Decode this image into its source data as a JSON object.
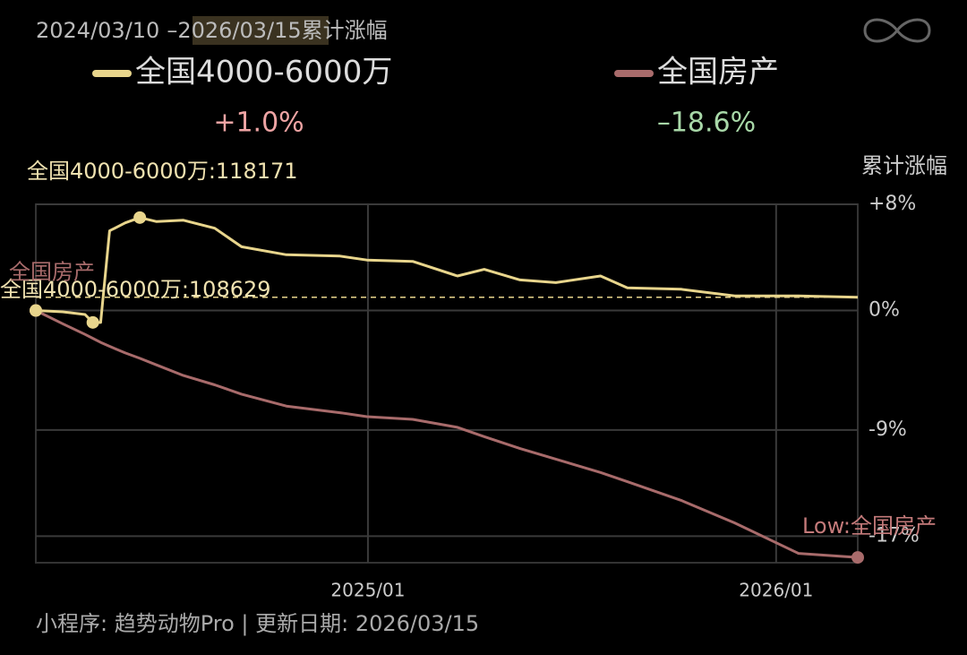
{
  "header": {
    "start": "2024/03/10",
    "separator": "–",
    "end": "2026/03/15",
    "title": "累计涨幅"
  },
  "chart_data": {
    "type": "line",
    "y_axis_title": "累计涨幅",
    "x": [
      "2024/03/10",
      "2024/04/03",
      "2024/04/23",
      "2024/04/30",
      "2024/05/07",
      "2024/05/15",
      "2024/05/29",
      "2024/06/11",
      "2024/06/26",
      "2024/07/20",
      "2024/08/17",
      "2024/09/10",
      "2024/10/20",
      "2024/12/07",
      "2024/12/31",
      "2025/02/10",
      "2025/03/22",
      "2025/04/15",
      "2025/05/17",
      "2025/06/18",
      "2025/07/28",
      "2025/08/21",
      "2025/10/08",
      "2025/11/25",
      "2026/01/21",
      "2026/03/15"
    ],
    "series": [
      {
        "name": "全国4000-6000万",
        "color": "#e8d58c",
        "final_label": "+1.0%",
        "final_color": "#eea4a4",
        "values": [
          0,
          -0.1,
          -0.3,
          -0.9,
          -0.9,
          6.0,
          6.6,
          7.0,
          6.7,
          6.8,
          6.2,
          4.8,
          4.2,
          4.1,
          3.8,
          3.7,
          2.6,
          3.1,
          2.3,
          2.1,
          2.6,
          1.7,
          1.6,
          1.1,
          1.1,
          1.0
        ]
      },
      {
        "name": "全国房产",
        "color": "#a86b6b",
        "final_label": "–18.6%",
        "final_color": "#a8d8a8",
        "values": [
          0,
          -1.0,
          -1.8,
          -2.1,
          -2.4,
          -2.7,
          -3.2,
          -3.6,
          -4.1,
          -4.9,
          -5.6,
          -6.3,
          -7.2,
          -7.7,
          -8.0,
          -8.2,
          -8.8,
          -9.5,
          -10.4,
          -11.2,
          -12.2,
          -12.9,
          -14.3,
          -16.0,
          -18.3,
          -18.6
        ]
      }
    ],
    "annotations": {
      "max_label": "全国4000-6000万:118171",
      "min_label": "全国4000-6000万:108629",
      "start_label": "全国房产",
      "low_label": "Low:全国房产"
    },
    "ylim": [
      -19,
      8
    ],
    "yticks": [
      {
        "value": 8,
        "label": "+8%"
      },
      {
        "value": 0,
        "label": "0%"
      },
      {
        "value": -9,
        "label": "-9%"
      },
      {
        "value": -17,
        "label": "-17%"
      }
    ],
    "xlim": [
      "2024/03/10",
      "2026/03/15"
    ],
    "xticks": [
      {
        "value": "2025/01/01",
        "label": "2025/01"
      },
      {
        "value": "2026/01/01",
        "label": "2026/01"
      }
    ],
    "grid": true
  },
  "footer": "小程序: 趋势动物Pro | 更新日期: 2026/03/15"
}
